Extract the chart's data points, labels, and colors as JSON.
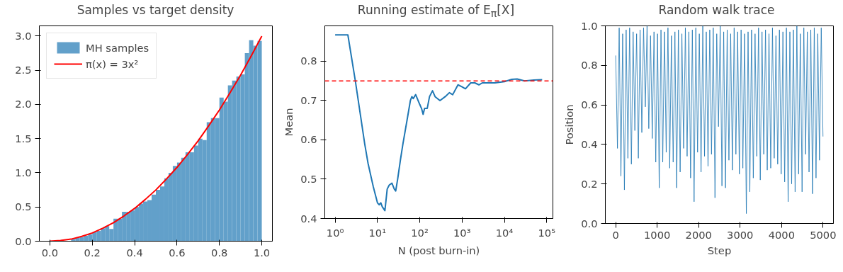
{
  "chart_data": [
    {
      "type": "histogram",
      "title": "Samples vs target density",
      "legend": "top left",
      "grid": false,
      "xlim": [
        -0.05,
        1.05
      ],
      "ylim": [
        0,
        3.15
      ],
      "xticks": [
        {
          "value": 0,
          "label": "0.0"
        },
        {
          "value": 0.2,
          "label": "0.2"
        },
        {
          "value": 0.4,
          "label": "0.4"
        },
        {
          "value": 0.6,
          "label": "0.6"
        },
        {
          "value": 0.8,
          "label": "0.8"
        },
        {
          "value": 1,
          "label": "1.0"
        }
      ],
      "yticks": [
        {
          "value": 0,
          "label": "0.0"
        },
        {
          "value": 0.5,
          "label": "0.5"
        },
        {
          "value": 1,
          "label": "1.0"
        },
        {
          "value": 1.5,
          "label": "1.5"
        },
        {
          "value": 2,
          "label": "2.0"
        },
        {
          "value": 2.5,
          "label": "2.5"
        },
        {
          "value": 3,
          "label": "3.0"
        }
      ],
      "series": [
        {
          "type": "histogram",
          "name": "MH samples",
          "color": "#62a0ca",
          "bins": [
            0,
            0.02,
            0.04,
            0.06,
            0.08,
            0.1,
            0.12,
            0.14,
            0.16,
            0.18,
            0.2,
            0.22,
            0.24,
            0.26,
            0.28,
            0.3,
            0.32,
            0.34,
            0.36,
            0.38,
            0.4,
            0.42,
            0.44,
            0.46,
            0.48,
            0.5,
            0.52,
            0.54,
            0.56,
            0.58,
            0.6,
            0.62,
            0.64,
            0.66,
            0.68,
            0.7,
            0.72,
            0.74,
            0.76,
            0.78,
            0.8,
            0.82,
            0.84,
            0.86,
            0.88,
            0.9,
            0.92,
            0.94,
            0.96,
            0.98,
            1.0
          ],
          "values": [
            0.0,
            0.0,
            0.01,
            null,
            null,
            0.03,
            0.05,
            0.06,
            0.08,
            0.1,
            0.13,
            0.15,
            0.19,
            0.22,
            0.18,
            0.33,
            0.33,
            0.43,
            0.43,
            0.45,
            0.5,
            0.55,
            0.58,
            0.6,
            0.68,
            0.75,
            0.8,
            0.92,
            1.0,
            1.1,
            1.15,
            1.22,
            1.3,
            1.3,
            1.4,
            1.5,
            1.48,
            1.74,
            1.8,
            1.8,
            2.1,
            2.04,
            2.28,
            2.35,
            2.41,
            2.44,
            2.75,
            2.94,
            2.86,
            2.93
          ]
        },
        {
          "type": "line",
          "name": "π(x) = 3x²",
          "color": "#ff0000",
          "x": [
            0,
            0.05,
            0.1,
            0.15,
            0.2,
            0.25,
            0.3,
            0.35,
            0.4,
            0.45,
            0.5,
            0.55,
            0.6,
            0.65,
            0.7,
            0.75,
            0.8,
            0.85,
            0.9,
            0.95,
            1.0
          ],
          "values": [
            0,
            0.01,
            0.03,
            0.07,
            0.12,
            0.19,
            0.27,
            0.37,
            0.48,
            0.61,
            0.75,
            0.91,
            1.08,
            1.27,
            1.47,
            1.69,
            1.92,
            2.17,
            2.43,
            2.71,
            3.0
          ]
        }
      ]
    },
    {
      "type": "line",
      "title": "Running estimate of E$_{π}$[X]",
      "xlabel": "N (post burn-in)",
      "ylabel": "Mean",
      "log": "x",
      "grid": false,
      "xlim": [
        0.57,
        140000
      ],
      "ylim": [
        0.4,
        0.89
      ],
      "xticks": [
        {
          "value": 1,
          "label": "10⁰"
        },
        {
          "value": 10,
          "label": "10¹"
        },
        {
          "value": 100,
          "label": "10²"
        },
        {
          "value": 1000,
          "label": "10³"
        },
        {
          "value": 10000,
          "label": "10⁴"
        },
        {
          "value": 100000,
          "label": "10⁵"
        }
      ],
      "yticks": [
        0.4,
        0.5,
        0.6,
        0.7,
        0.8
      ],
      "ref_lines": [
        {
          "axis": "y",
          "value": 0.75,
          "color": "#ff0000",
          "line_style": "dashed"
        }
      ],
      "series": [
        {
          "color": "#1f77b4",
          "x": [
            1,
            2,
            3,
            4,
            5,
            6,
            8,
            10,
            11,
            12,
            13,
            15,
            17,
            19,
            22,
            25,
            27,
            30,
            35,
            40,
            50,
            60,
            65,
            70,
            80,
            100,
            110,
            120,
            130,
            150,
            170,
            200,
            230,
            300,
            400,
            500,
            600,
            800,
            1000,
            1200,
            1600,
            2000,
            2500,
            3000,
            4000,
            6000,
            10000,
            15000,
            20000,
            30000,
            50000,
            78000
          ],
          "values": [
            0.867,
            0.867,
            0.75,
            0.66,
            0.59,
            0.54,
            0.48,
            0.44,
            0.435,
            0.44,
            0.43,
            0.42,
            0.475,
            0.485,
            0.49,
            0.475,
            0.47,
            0.5,
            0.55,
            0.59,
            0.65,
            0.7,
            0.71,
            0.705,
            0.715,
            0.69,
            0.68,
            0.665,
            0.68,
            0.68,
            0.71,
            0.725,
            0.71,
            0.7,
            0.71,
            0.72,
            0.715,
            0.74,
            0.735,
            0.73,
            0.745,
            0.745,
            0.74,
            0.745,
            0.745,
            0.745,
            0.748,
            0.754,
            0.755,
            0.75,
            0.752,
            0.753
          ]
        }
      ]
    },
    {
      "type": "line",
      "title": "Random walk trace",
      "xlabel": "Step",
      "ylabel": "Position",
      "grid": false,
      "xlim": [
        -250,
        5250
      ],
      "ylim": [
        0,
        1
      ],
      "xticks": [
        0,
        1000,
        2000,
        3000,
        4000,
        5000
      ],
      "yticks": [
        {
          "value": 0,
          "label": "0.0"
        },
        {
          "value": 0.2,
          "label": "0.2"
        },
        {
          "value": 0.4,
          "label": "0.4"
        },
        {
          "value": 0.6,
          "label": "0.6"
        },
        {
          "value": 0.8,
          "label": "0.8"
        },
        {
          "value": 1,
          "label": "1.0"
        }
      ],
      "series": [
        {
          "color": "#1f77b4",
          "x": [
            0,
            42,
            84,
            126,
            168,
            210,
            252,
            294,
            336,
            378,
            420,
            462,
            504,
            546,
            588,
            630,
            672,
            714,
            756,
            798,
            840,
            882,
            924,
            966,
            1008,
            1050,
            1092,
            1134,
            1176,
            1218,
            1260,
            1302,
            1344,
            1386,
            1428,
            1470,
            1512,
            1554,
            1596,
            1638,
            1680,
            1722,
            1764,
            1806,
            1848,
            1890,
            1932,
            1974,
            2016,
            2058,
            2100,
            2142,
            2184,
            2226,
            2268,
            2310,
            2352,
            2394,
            2436,
            2478,
            2520,
            2562,
            2604,
            2646,
            2688,
            2730,
            2772,
            2814,
            2856,
            2898,
            2940,
            2982,
            3024,
            3066,
            3108,
            3150,
            3192,
            3234,
            3276,
            3318,
            3360,
            3402,
            3444,
            3486,
            3528,
            3570,
            3612,
            3654,
            3696,
            3738,
            3780,
            3822,
            3864,
            3906,
            3948,
            3990,
            4032,
            4074,
            4116,
            4158,
            4200,
            4242,
            4284,
            4326,
            4368,
            4410,
            4452,
            4494,
            4536,
            4578,
            4620,
            4662,
            4704,
            4746,
            4788,
            4830,
            4872,
            4914,
            4956,
            4998
          ],
          "values": [
            0.85,
            0.38,
            0.99,
            0.24,
            0.96,
            0.17,
            0.98,
            0.33,
            0.99,
            0.3,
            0.97,
            0.47,
            0.96,
            0.33,
            0.98,
            0.46,
            0.99,
            0.59,
            1.0,
            0.48,
            0.95,
            0.43,
            0.97,
            0.31,
            0.96,
            0.18,
            0.98,
            0.31,
            0.97,
            0.36,
            0.99,
            0.28,
            0.95,
            0.31,
            0.97,
            0.18,
            0.98,
            0.26,
            0.96,
            0.38,
            0.99,
            0.34,
            0.97,
            0.23,
            0.98,
            0.11,
            0.99,
            0.36,
            0.96,
            0.26,
            1.0,
            0.34,
            0.97,
            0.29,
            0.98,
            0.35,
            0.99,
            0.13,
            0.96,
            0.49,
            1.0,
            0.19,
            0.97,
            0.18,
            0.98,
            0.32,
            0.96,
            0.27,
            0.99,
            0.35,
            0.97,
            0.25,
            0.98,
            0.28,
            0.96,
            0.05,
            0.97,
            0.16,
            0.98,
            0.23,
            0.96,
            0.34,
            0.99,
            0.22,
            0.97,
            0.35,
            0.98,
            0.27,
            0.96,
            0.28,
            0.99,
            0.33,
            0.95,
            0.3,
            0.98,
            0.25,
            0.97,
            0.21,
            0.99,
            0.11,
            0.97,
            0.2,
            0.98,
            0.16,
            1.0,
            0.25,
            0.96,
            0.16,
            0.99,
            0.35,
            0.97,
            0.26,
            0.98,
            0.15,
            0.99,
            0.23,
            0.96,
            0.32,
            0.99,
            0.44
          ]
        }
      ]
    }
  ]
}
